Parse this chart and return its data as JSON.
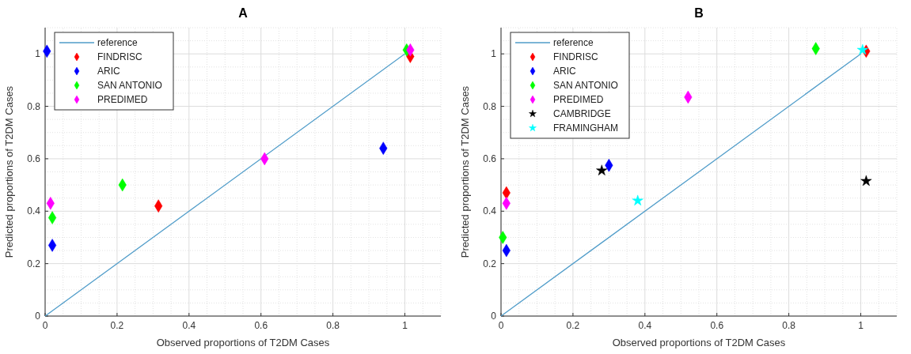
{
  "chart_data": [
    {
      "type": "scatter",
      "title": "A",
      "xlabel": "Observed proportions of T2DM Cases",
      "ylabel": "Predicted proportions of T2DM Cases",
      "xlim": [
        0,
        1.1
      ],
      "ylim": [
        0,
        1.1
      ],
      "xticks": [
        0,
        0.2,
        0.4,
        0.6,
        0.8,
        1
      ],
      "yticks": [
        0,
        0.2,
        0.4,
        0.6,
        0.8,
        1
      ],
      "grid": true,
      "legend": "top left",
      "series": [
        {
          "name": "reference",
          "type": "line",
          "color": "#4f9cc9",
          "marker": "none",
          "x": [
            0,
            1
          ],
          "values": [
            0,
            1
          ]
        },
        {
          "name": "FINDRISC",
          "color": "#ff0000",
          "marker": "diamond",
          "x": [
            0.315,
            1.015
          ],
          "values": [
            0.42,
            0.99
          ]
        },
        {
          "name": "ARIC",
          "color": "#0000ff",
          "marker": "diamond",
          "x": [
            0.005,
            0.02,
            0.94
          ],
          "values": [
            1.01,
            0.27,
            0.64
          ]
        },
        {
          "name": "SAN ANTONIO",
          "color": "#00ff00",
          "marker": "diamond",
          "x": [
            0.02,
            0.215,
            1.005
          ],
          "values": [
            0.375,
            0.5,
            1.015
          ]
        },
        {
          "name": "PREDIMED",
          "color": "#ff00ff",
          "marker": "diamond",
          "x": [
            0.015,
            0.61,
            1.015
          ],
          "values": [
            0.43,
            0.6,
            1.015
          ]
        }
      ]
    },
    {
      "type": "scatter",
      "title": "B",
      "xlabel": "Observed proportions of T2DM Cases",
      "ylabel": "Predicted proportions of T2DM Cases",
      "xlim": [
        0,
        1.1
      ],
      "ylim": [
        0,
        1.1
      ],
      "xticks": [
        0,
        0.2,
        0.4,
        0.6,
        0.8,
        1
      ],
      "yticks": [
        0,
        0.2,
        0.4,
        0.6,
        0.8,
        1
      ],
      "grid": true,
      "legend": "top left",
      "series": [
        {
          "name": "reference",
          "type": "line",
          "color": "#4f9cc9",
          "marker": "none",
          "x": [
            0,
            1
          ],
          "values": [
            0,
            1
          ]
        },
        {
          "name": "FINDRISC",
          "color": "#ff0000",
          "marker": "diamond",
          "x": [
            0.015,
            1.015
          ],
          "values": [
            0.47,
            1.01
          ]
        },
        {
          "name": "ARIC",
          "color": "#0000ff",
          "marker": "diamond",
          "x": [
            0.015,
            0.3
          ],
          "values": [
            0.25,
            0.575
          ]
        },
        {
          "name": "SAN ANTONIO",
          "color": "#00ff00",
          "marker": "diamond",
          "x": [
            0.005,
            0.875
          ],
          "values": [
            0.3,
            1.02
          ]
        },
        {
          "name": "PREDIMED",
          "color": "#ff00ff",
          "marker": "diamond",
          "x": [
            0.015,
            0.52
          ],
          "values": [
            0.43,
            0.835
          ]
        },
        {
          "name": "CAMBRIDGE",
          "color": "#000000",
          "marker": "star",
          "x": [
            0.28,
            1.015
          ],
          "values": [
            0.555,
            0.515
          ]
        },
        {
          "name": "FRAMINGHAM",
          "color": "#00ffff",
          "marker": "star",
          "x": [
            0.38,
            1.005
          ],
          "values": [
            0.44,
            1.015
          ]
        }
      ]
    }
  ]
}
